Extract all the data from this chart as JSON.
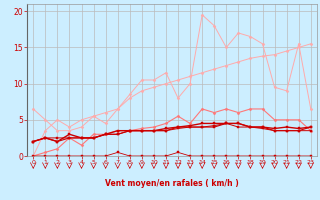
{
  "x": [
    0,
    1,
    2,
    3,
    4,
    5,
    6,
    7,
    8,
    9,
    10,
    11,
    12,
    13,
    14,
    15,
    16,
    17,
    18,
    19,
    20,
    21,
    22,
    23
  ],
  "series": [
    {
      "color": "#ffaaaa",
      "lw": 0.7,
      "marker": "D",
      "ms": 1.5,
      "values": [
        0,
        3.5,
        5.0,
        4.0,
        5.0,
        5.5,
        4.5,
        6.5,
        8.5,
        10.5,
        10.5,
        11.5,
        8.0,
        10.0,
        19.5,
        18.0,
        15.0,
        17.0,
        16.5,
        15.5,
        9.5,
        9.0,
        15.5,
        6.5
      ]
    },
    {
      "color": "#ffaaaa",
      "lw": 0.7,
      "marker": "D",
      "ms": 1.5,
      "values": [
        6.5,
        5.0,
        3.5,
        3.5,
        4.0,
        5.5,
        6.0,
        6.5,
        8.0,
        9.0,
        9.5,
        10.0,
        10.5,
        11.0,
        11.5,
        12.0,
        12.5,
        13.0,
        13.5,
        13.8,
        14.0,
        14.5,
        15.0,
        15.5
      ]
    },
    {
      "color": "#ff7777",
      "lw": 0.8,
      "marker": "D",
      "ms": 1.5,
      "values": [
        0,
        0.5,
        1.0,
        2.5,
        1.5,
        3.0,
        3.0,
        3.5,
        3.5,
        3.8,
        4.0,
        4.5,
        5.5,
        4.5,
        6.5,
        6.0,
        6.5,
        6.0,
        6.5,
        6.5,
        5.0,
        5.0,
        5.0,
        3.5
      ]
    },
    {
      "color": "#cc0000",
      "lw": 0.6,
      "marker": "s",
      "ms": 1.5,
      "values": [
        0,
        0.0,
        0.0,
        0.0,
        0.0,
        0.0,
        0.0,
        0.5,
        0.0,
        0.0,
        0.0,
        0.0,
        0.5,
        0.0,
        0.0,
        0.0,
        0.0,
        0.0,
        0.0,
        0.0,
        0.0,
        0.0,
        0.0,
        0.0
      ]
    },
    {
      "color": "#cc0000",
      "lw": 0.8,
      "marker": "s",
      "ms": 1.5,
      "values": [
        2.0,
        2.5,
        2.0,
        2.5,
        2.5,
        2.5,
        3.0,
        3.0,
        3.5,
        3.5,
        3.5,
        3.5,
        4.0,
        4.0,
        4.0,
        4.0,
        4.5,
        4.5,
        4.0,
        4.0,
        3.5,
        3.5,
        3.5,
        4.0
      ]
    },
    {
      "color": "#cc0000",
      "lw": 1.0,
      "marker": "s",
      "ms": 2.0,
      "values": [
        2.0,
        2.5,
        2.0,
        3.0,
        2.5,
        2.5,
        3.0,
        3.5,
        3.5,
        3.5,
        3.5,
        3.8,
        4.0,
        4.2,
        4.5,
        4.5,
        4.5,
        4.5,
        4.0,
        4.0,
        3.8,
        4.0,
        3.8,
        4.0
      ]
    },
    {
      "color": "#cc0000",
      "lw": 0.7,
      "marker": "s",
      "ms": 1.5,
      "values": [
        2.0,
        2.5,
        2.5,
        2.5,
        2.5,
        2.5,
        3.0,
        3.0,
        3.5,
        3.5,
        3.5,
        3.5,
        3.8,
        4.0,
        4.0,
        4.2,
        4.5,
        4.0,
        4.0,
        3.8,
        3.5,
        3.5,
        3.5,
        3.5
      ]
    }
  ],
  "xlim": [
    -0.5,
    23.5
  ],
  "ylim": [
    0,
    21
  ],
  "yticks": [
    0,
    5,
    10,
    15,
    20
  ],
  "xticks": [
    0,
    1,
    2,
    3,
    4,
    5,
    6,
    7,
    8,
    9,
    10,
    11,
    12,
    13,
    14,
    15,
    16,
    17,
    18,
    19,
    20,
    21,
    22,
    23
  ],
  "xlabel": "Vent moyen/en rafales ( km/h )",
  "bg_color": "#cceeff",
  "grid_color": "#bbbbbb",
  "tick_color": "#cc0000",
  "label_color": "#cc0000"
}
